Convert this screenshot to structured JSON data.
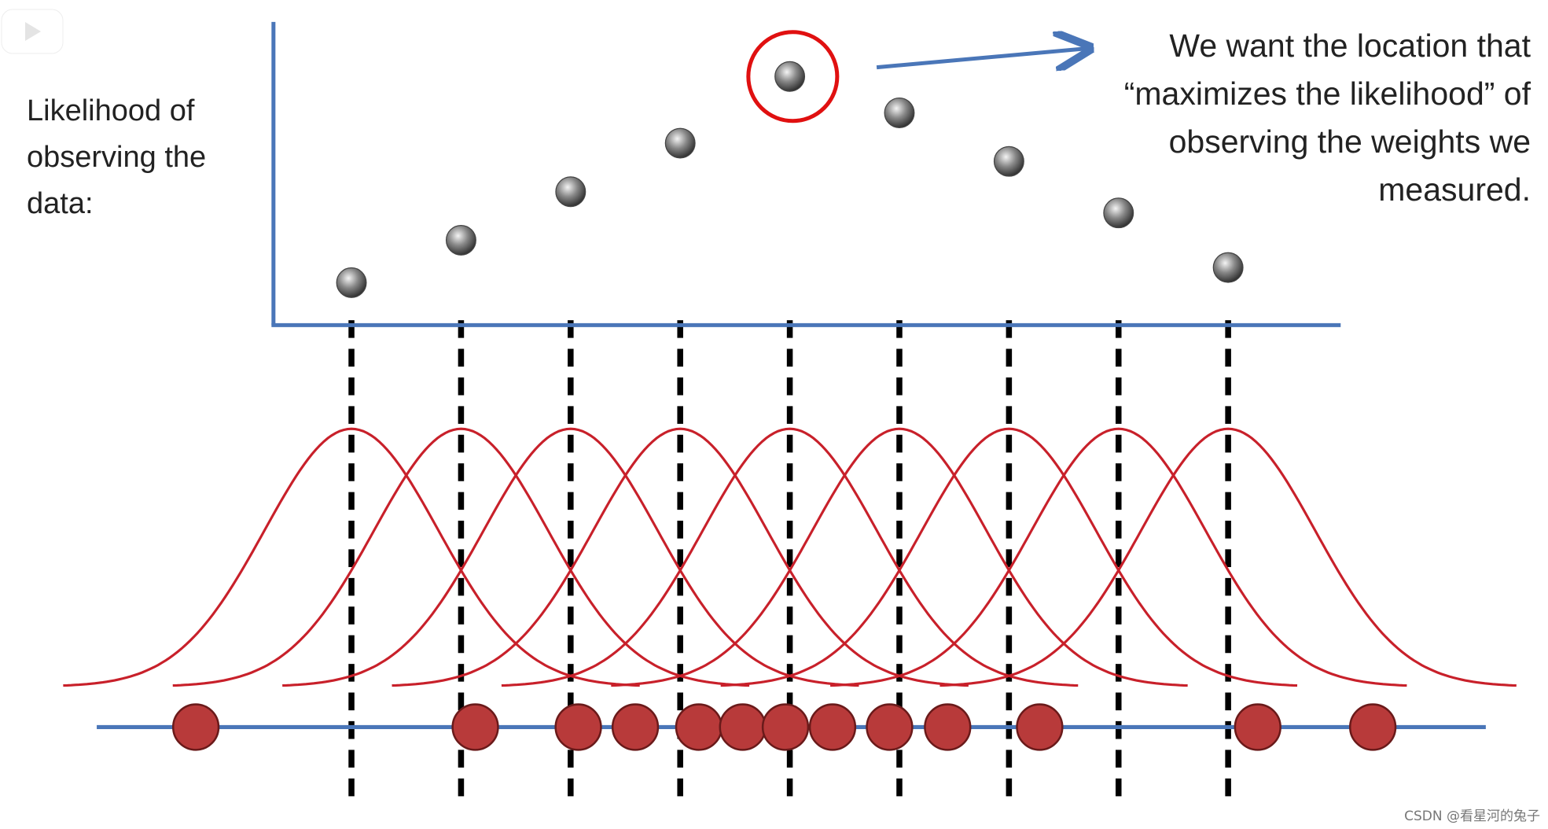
{
  "ylabel": [
    "Likelihood of",
    "observing the",
    "data:"
  ],
  "annotation": [
    "We want the location that",
    "“maximizes the likelihood” of",
    "observing the weights we",
    "measured."
  ],
  "credit": "CSDN @看星河的兔子",
  "watermark_icon": "bilibili-tv-icon",
  "colors": {
    "axis": "#4a76b8",
    "curve": "#c8202a",
    "highlight": "#e01010",
    "data_point": "#b83a3a",
    "likelihood_point": "#777777",
    "dashed": "#000000"
  },
  "chart_data": {
    "type": "scatter",
    "candidate_locations": [
      1,
      2,
      3,
      4,
      5,
      6,
      7,
      8,
      9
    ],
    "likelihood": [
      0.14,
      0.28,
      0.44,
      0.6,
      0.82,
      0.7,
      0.54,
      0.37,
      0.19
    ],
    "max_index": 4,
    "observed_weights": [
      -0.42,
      2.13,
      3.07,
      3.59,
      4.17,
      4.57,
      4.96,
      5.39,
      5.91,
      6.44,
      7.28,
      9.27,
      10.32
    ],
    "distribution": "normal",
    "grid": false
  }
}
